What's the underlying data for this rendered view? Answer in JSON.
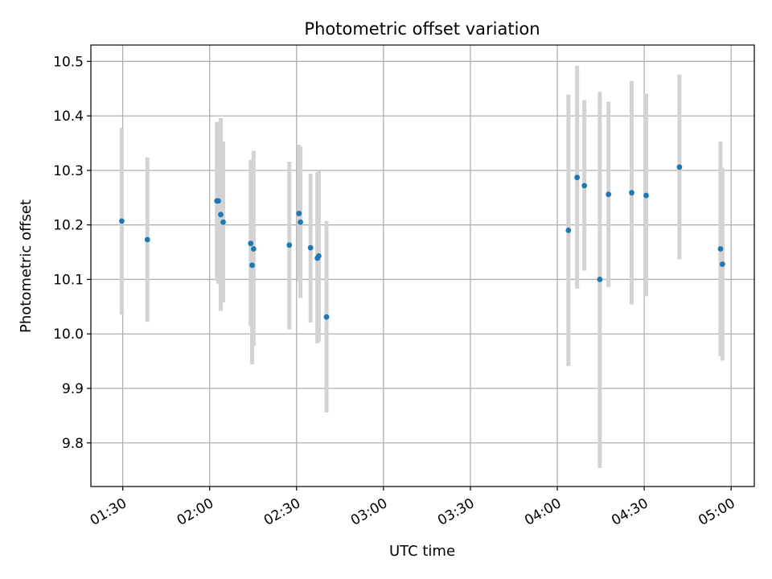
{
  "chart_data": {
    "type": "scatter",
    "title": "Photometric offset variation",
    "xlabel": "UTC time",
    "ylabel": "Photometric offset",
    "grid": true,
    "xlim": [
      "01:19",
      "05:08"
    ],
    "ylim": [
      9.72,
      10.53
    ],
    "x_ticks": [
      "01:30",
      "02:00",
      "02:30",
      "03:00",
      "03:30",
      "04:00",
      "04:30",
      "05:00"
    ],
    "y_ticks": [
      "9.8",
      "9.9",
      "10.0",
      "10.1",
      "10.2",
      "10.3",
      "10.4",
      "10.5"
    ],
    "colors": {
      "points": "#1f77b4",
      "error_bars": "#d3d3d3",
      "grid": "#b0b0b0"
    },
    "points": [
      {
        "time": "01:29:40",
        "y": 10.207,
        "y_low": 10.035,
        "y_high": 10.378
      },
      {
        "time": "01:38:30",
        "y": 10.173,
        "y_low": 10.022,
        "y_high": 10.324
      },
      {
        "time": "02:02:30",
        "y": 10.244,
        "y_low": 10.098,
        "y_high": 10.389
      },
      {
        "time": "02:03:00",
        "y": 10.244,
        "y_low": 10.092,
        "y_high": 10.389
      },
      {
        "time": "02:03:50",
        "y": 10.219,
        "y_low": 10.042,
        "y_high": 10.396
      },
      {
        "time": "02:04:40",
        "y": 10.205,
        "y_low": 10.058,
        "y_high": 10.353
      },
      {
        "time": "02:14:10",
        "y": 10.166,
        "y_low": 10.014,
        "y_high": 10.319
      },
      {
        "time": "02:14:40",
        "y": 10.126,
        "y_low": 9.944,
        "y_high": 10.308
      },
      {
        "time": "02:15:10",
        "y": 10.156,
        "y_low": 9.978,
        "y_high": 10.336
      },
      {
        "time": "02:27:30",
        "y": 10.163,
        "y_low": 10.008,
        "y_high": 10.316
      },
      {
        "time": "02:30:50",
        "y": 10.221,
        "y_low": 10.096,
        "y_high": 10.347
      },
      {
        "time": "02:31:20",
        "y": 10.205,
        "y_low": 10.066,
        "y_high": 10.344
      },
      {
        "time": "02:34:50",
        "y": 10.158,
        "y_low": 10.021,
        "y_high": 10.294
      },
      {
        "time": "02:37:10",
        "y": 10.139,
        "y_low": 9.983,
        "y_high": 10.296
      },
      {
        "time": "02:37:40",
        "y": 10.143,
        "y_low": 9.985,
        "y_high": 10.3
      },
      {
        "time": "02:40:20",
        "y": 10.031,
        "y_low": 9.856,
        "y_high": 10.207
      },
      {
        "time": "04:03:50",
        "y": 10.19,
        "y_low": 9.941,
        "y_high": 10.439
      },
      {
        "time": "04:06:50",
        "y": 10.287,
        "y_low": 10.083,
        "y_high": 10.492
      },
      {
        "time": "04:09:20",
        "y": 10.272,
        "y_low": 10.116,
        "y_high": 10.429
      },
      {
        "time": "04:14:40",
        "y": 10.1,
        "y_low": 9.754,
        "y_high": 10.444
      },
      {
        "time": "04:17:40",
        "y": 10.256,
        "y_low": 10.086,
        "y_high": 10.426
      },
      {
        "time": "04:25:40",
        "y": 10.259,
        "y_low": 10.054,
        "y_high": 10.464
      },
      {
        "time": "04:30:40",
        "y": 10.254,
        "y_low": 10.069,
        "y_high": 10.441
      },
      {
        "time": "04:42:10",
        "y": 10.306,
        "y_low": 10.137,
        "y_high": 10.476
      },
      {
        "time": "04:56:20",
        "y": 10.156,
        "y_low": 9.959,
        "y_high": 10.353
      },
      {
        "time": "04:57:00",
        "y": 10.128,
        "y_low": 9.951,
        "y_high": 10.305
      }
    ]
  }
}
